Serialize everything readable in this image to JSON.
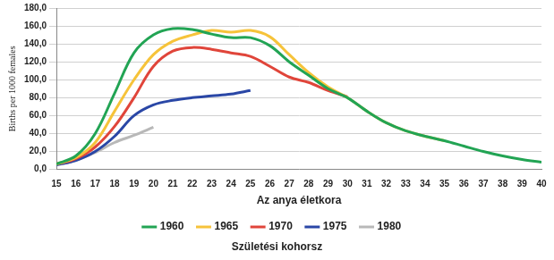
{
  "chart_data": {
    "type": "line",
    "x_label": "Az anya életkora",
    "y_label": "Births per 1000 females",
    "legend_title": "Születési kohorsz",
    "x": [
      15,
      16,
      17,
      18,
      19,
      20,
      21,
      22,
      23,
      24,
      25,
      26,
      27,
      28,
      29,
      30,
      31,
      32,
      33,
      34,
      35,
      36,
      37,
      38,
      39,
      40
    ],
    "series": [
      {
        "name": "1960",
        "color": "#22a454",
        "values": [
          6,
          15,
          40,
          85,
          130,
          150,
          157,
          156,
          151,
          147,
          147,
          138,
          120,
          105,
          90,
          80,
          65,
          52,
          43,
          37,
          32,
          26,
          20,
          15,
          11,
          8
        ]
      },
      {
        "name": "1965",
        "color": "#f6c33a",
        "values": [
          6,
          13,
          30,
          65,
          100,
          128,
          143,
          150,
          155,
          153,
          155,
          148,
          128,
          108,
          92,
          80,
          65,
          52,
          43,
          37,
          32,
          null,
          null,
          null,
          null,
          null
        ]
      },
      {
        "name": "1970",
        "color": "#e0453a",
        "values": [
          6,
          12,
          25,
          48,
          80,
          115,
          132,
          136,
          134,
          130,
          126,
          115,
          103,
          97,
          88,
          81,
          null,
          null,
          null,
          null,
          null,
          null,
          null,
          null,
          null,
          null
        ]
      },
      {
        "name": "1975",
        "color": "#2a47a6",
        "values": [
          5,
          10,
          20,
          37,
          60,
          72,
          77,
          80,
          82,
          84,
          88,
          null,
          null,
          null,
          null,
          null,
          null,
          null,
          null,
          null,
          null,
          null,
          null,
          null,
          null,
          null
        ]
      },
      {
        "name": "1980",
        "color": "#b8b8b8",
        "values": [
          5,
          10,
          19,
          30,
          38,
          47,
          null,
          null,
          null,
          null,
          null,
          null,
          null,
          null,
          null,
          null,
          null,
          null,
          null,
          null,
          null,
          null,
          null,
          null,
          null,
          null
        ]
      }
    ],
    "xlim": [
      15,
      40
    ],
    "xticks": [
      15,
      16,
      17,
      18,
      19,
      20,
      21,
      22,
      23,
      24,
      25,
      26,
      27,
      28,
      29,
      30,
      31,
      32,
      33,
      34,
      35,
      36,
      37,
      38,
      39,
      40
    ],
    "ylim": [
      0,
      180
    ],
    "yticks": [
      {
        "value": 0,
        "label": "0,0"
      },
      {
        "value": 20,
        "label": "20,0"
      },
      {
        "value": 40,
        "label": "40,0"
      },
      {
        "value": 60,
        "label": "60,0"
      },
      {
        "value": 80,
        "label": "80,0"
      },
      {
        "value": 100,
        "label": "100,0"
      },
      {
        "value": 120,
        "label": "120,0"
      },
      {
        "value": 140,
        "label": "140,0"
      },
      {
        "value": 160,
        "label": "160,0"
      },
      {
        "value": 180,
        "label": "180,0"
      }
    ],
    "grid": true,
    "legend": "bottom"
  }
}
